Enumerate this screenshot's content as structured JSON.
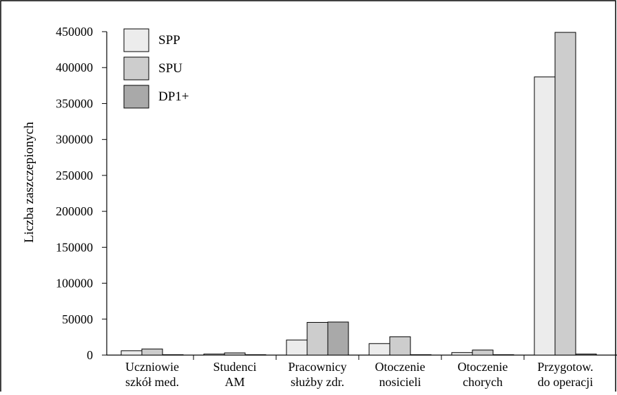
{
  "chart_data": {
    "type": "bar",
    "title": "",
    "xlabel": "",
    "ylabel": "Liczba zaszczepionych",
    "ylim": [
      0,
      450000
    ],
    "yticks": [
      0,
      50000,
      100000,
      150000,
      200000,
      250000,
      300000,
      350000,
      400000,
      450000
    ],
    "ytick_labels": [
      "0",
      "50000",
      "100000",
      "150000",
      "200000",
      "250000",
      "300000",
      "350000",
      "400000",
      "450000"
    ],
    "grid": false,
    "legend_position": "top-left",
    "categories": [
      [
        "Uczniowie",
        "szkół med."
      ],
      [
        "Studenci",
        "AM"
      ],
      [
        "Pracownicy",
        "służby zdr."
      ],
      [
        "Otoczenie",
        "nosicieli"
      ],
      [
        "Otoczenie",
        "chorych"
      ],
      [
        "Przygotow.",
        "do operacji"
      ]
    ],
    "series": [
      {
        "name": "SPP",
        "color": "#ececec",
        "values": [
          6000,
          1500,
          21000,
          16000,
          3500,
          387000
        ]
      },
      {
        "name": "SPU",
        "color": "#cdcdcd",
        "values": [
          8500,
          3000,
          45500,
          25500,
          7000,
          449000
        ]
      },
      {
        "name": "DP1+",
        "color": "#a9a9a9",
        "values": [
          300,
          200,
          46000,
          300,
          300,
          1500
        ]
      }
    ]
  }
}
